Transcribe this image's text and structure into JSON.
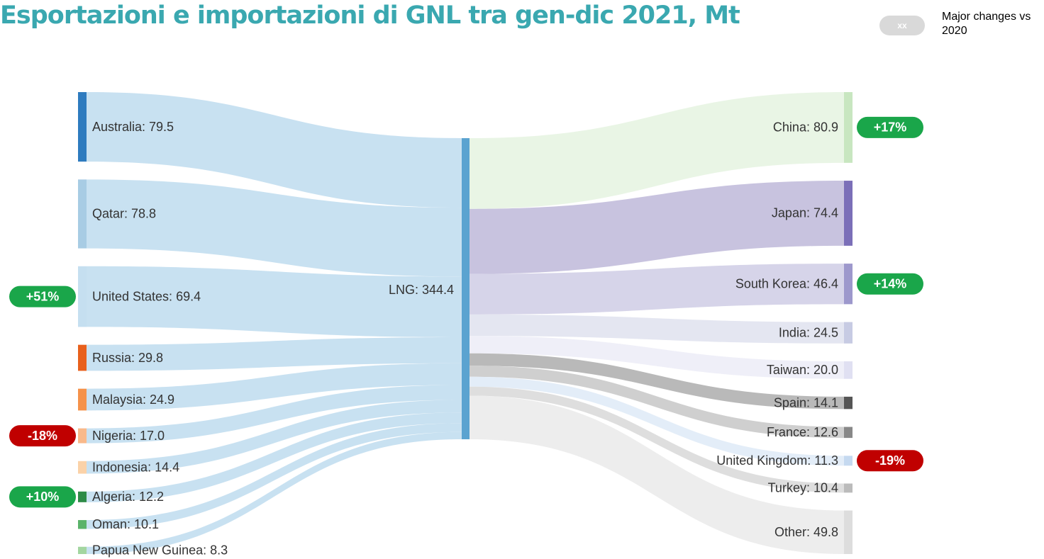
{
  "chart_data": {
    "type": "sankey",
    "title": "Esportazioni e importazioni di GNL tra gen-dic 2021, Mt",
    "legend": {
      "sample": "xx",
      "text": "Major changes vs 2020",
      "color": "#d9d9d9"
    },
    "positive_color": "#1aa64a",
    "negative_color": "#c00000",
    "center": {
      "label": "LNG: 344.4",
      "value": 344.4,
      "color": "#5ba3d0"
    },
    "sources": [
      {
        "label": "Australia: 79.5",
        "value": 79.5,
        "color": "#2e7bbf",
        "link_color": "#c5dff0"
      },
      {
        "label": "Qatar: 78.8",
        "value": 78.8,
        "color": "#a8cce4",
        "link_color": "#c5dff0"
      },
      {
        "label": "United States: 69.4",
        "value": 69.4,
        "color": "#c5dff0",
        "link_color": "#c5dff0",
        "change": {
          "value": 51,
          "label": "+51%"
        }
      },
      {
        "label": "Russia: 29.8",
        "value": 29.8,
        "color": "#e8601c",
        "link_color": "#c5dff0"
      },
      {
        "label": "Malaysia: 24.9",
        "value": 24.9,
        "color": "#f5924a",
        "link_color": "#c5dff0"
      },
      {
        "label": "Nigeria: 17.0",
        "value": 17.0,
        "color": "#f9b98a",
        "link_color": "#c5dff0",
        "change": {
          "value": -18,
          "label": "-18%"
        }
      },
      {
        "label": "Indonesia: 14.4",
        "value": 14.4,
        "color": "#fbd2a8",
        "link_color": "#c5dff0"
      },
      {
        "label": "Algeria: 12.2",
        "value": 12.2,
        "color": "#2e8b47",
        "link_color": "#c5dff0",
        "change": {
          "value": 10,
          "label": "+10%"
        }
      },
      {
        "label": "Oman: 10.1",
        "value": 10.1,
        "color": "#5ab36a",
        "link_color": "#c5dff0"
      },
      {
        "label": "Papua New Guinea: 8.3",
        "value": 8.3,
        "color": "#a3d6a0",
        "link_color": "#c5dff0"
      }
    ],
    "targets": [
      {
        "label": "China: 80.9",
        "value": 80.9,
        "color": "#c8e6c0",
        "link_color": "#e8f4e4",
        "change": {
          "value": 17,
          "label": "+17%"
        }
      },
      {
        "label": "Japan: 74.4",
        "value": 74.4,
        "color": "#7b6fb8",
        "link_color": "#c5c0dd"
      },
      {
        "label": "South Korea: 46.4",
        "value": 46.4,
        "color": "#9d98cc",
        "link_color": "#d4d2e8",
        "change": {
          "value": 14,
          "label": "+14%"
        }
      },
      {
        "label": "India: 24.5",
        "value": 24.5,
        "color": "#c7cbe3",
        "link_color": "#e3e5f0"
      },
      {
        "label": "Taiwan: 20.0",
        "value": 20.0,
        "color": "#e0e0f2",
        "link_color": "#eeeef8"
      },
      {
        "label": "Spain: 14.1",
        "value": 14.1,
        "color": "#555555",
        "link_color": "#b5b5b5"
      },
      {
        "label": "France: 12.6",
        "value": 12.6,
        "color": "#888888",
        "link_color": "#cccccc"
      },
      {
        "label": "United Kingdom: 11.3",
        "value": 11.3,
        "color": "#c5d9f0",
        "link_color": "#e2ecf8",
        "change": {
          "value": -19,
          "label": "-19%"
        }
      },
      {
        "label": "Turkey: 10.4",
        "value": 10.4,
        "color": "#bbbbbb",
        "link_color": "#dcdcdc"
      },
      {
        "label": "Other: 49.8",
        "value": 49.8,
        "color": "#dddddd",
        "link_color": "#ececec"
      }
    ]
  }
}
